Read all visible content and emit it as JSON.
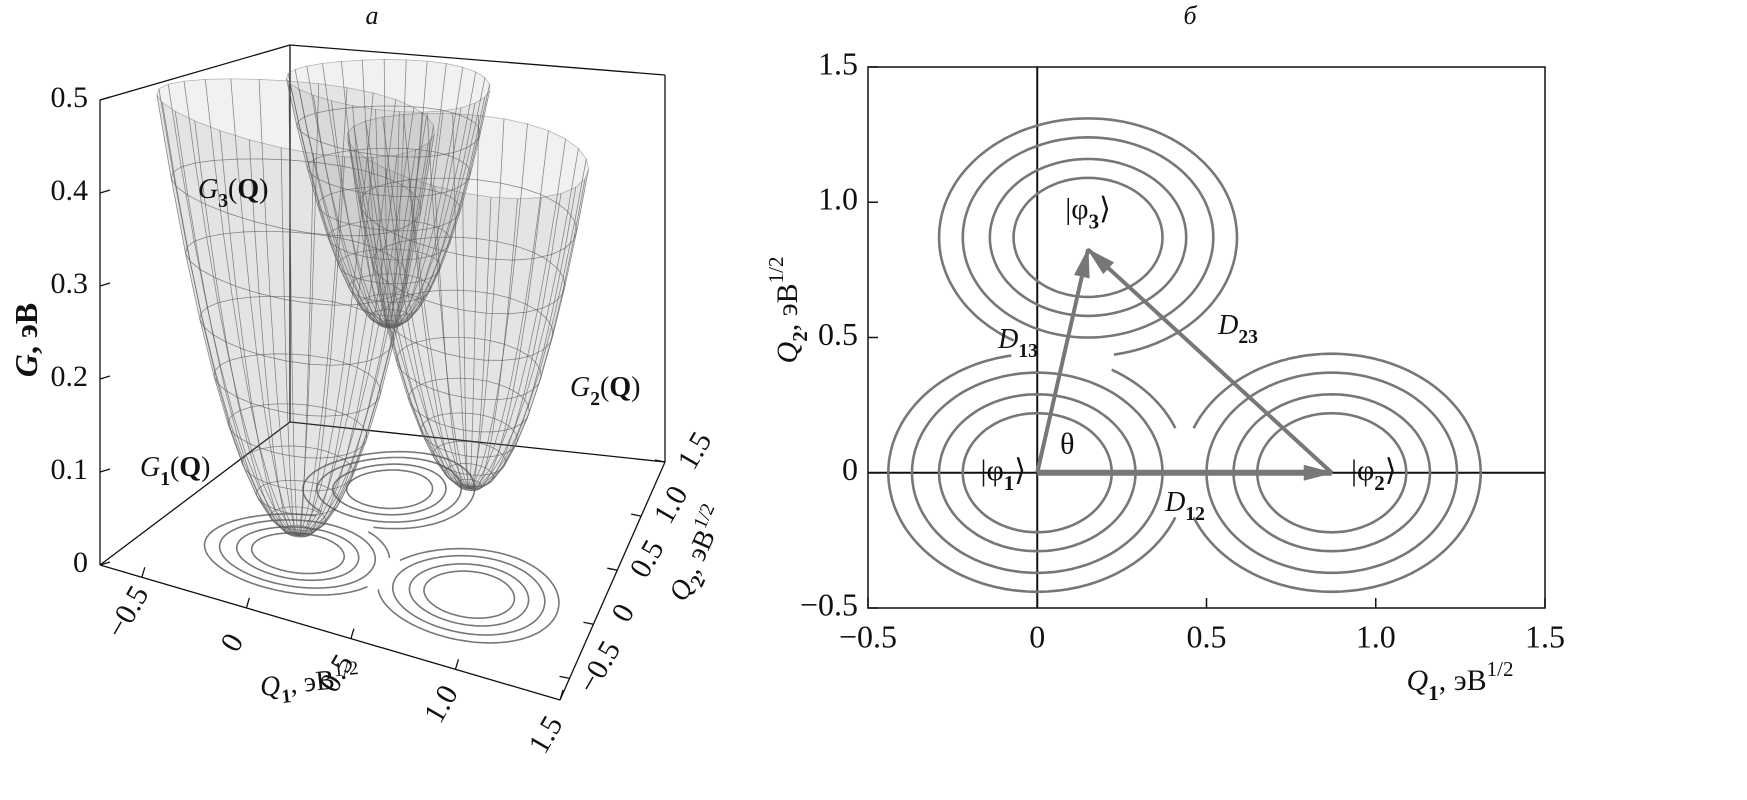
{
  "chart_data": [
    {
      "type": "surface3d",
      "title": "а",
      "zlabel": [
        {
          "text": "G",
          "style": "bi"
        },
        {
          "text": ", эВ",
          "style": "b"
        }
      ],
      "xlabel": [
        {
          "text": "Q",
          "style": "i"
        },
        {
          "text": "1",
          "style": "sub"
        },
        {
          "text": ", эВ",
          "style": "n"
        },
        {
          "text": "1/2",
          "style": "sup"
        }
      ],
      "ylabel": [
        {
          "text": "Q",
          "style": "i"
        },
        {
          "text": "2",
          "style": "sub"
        },
        {
          "text": ", эВ",
          "style": "n"
        },
        {
          "text": "1/2",
          "style": "sup"
        }
      ],
      "xlim": [
        -0.7,
        1.5
      ],
      "ylim": [
        -0.7,
        1.5
      ],
      "zlim": [
        0,
        0.5
      ],
      "xticks": [
        {
          "value": -0.5,
          "label": "−0.5"
        },
        0,
        0.5,
        {
          "value": 1,
          "label": "1.0"
        },
        1.5
      ],
      "yticks": [
        {
          "value": -0.5,
          "label": "−0.5"
        },
        0,
        0.5,
        {
          "value": 1,
          "label": "1.0"
        },
        1.5
      ],
      "zticks": [
        0,
        0.1,
        0.2,
        0.3,
        0.4,
        0.5
      ],
      "curvature": 1.1,
      "color": "#808080",
      "surfaces": [
        {
          "label": [
            {
              "text": "G",
              "style": "i"
            },
            {
              "text": "1",
              "style": "sub"
            },
            {
              "text": "(",
              "style": "n"
            },
            {
              "text": "Q",
              "style": "b"
            },
            {
              "text": ")",
              "style": "n"
            }
          ],
          "min": 0.02
        },
        {
          "label": [
            {
              "text": "G",
              "style": "i"
            },
            {
              "text": "2",
              "style": "sub"
            },
            {
              "text": "(",
              "style": "n"
            },
            {
              "text": "Q",
              "style": "b"
            },
            {
              "text": ")",
              "style": "n"
            }
          ],
          "min": 0.12
        },
        {
          "label": [
            {
              "text": "G",
              "style": "i"
            },
            {
              "text": "3",
              "style": "sub"
            },
            {
              "text": "(",
              "style": "n"
            },
            {
              "text": "Q",
              "style": "b"
            },
            {
              "text": ")",
              "style": "n"
            }
          ],
          "min": 0.2
        }
      ]
    },
    {
      "type": "contour",
      "title": "б",
      "xlabel": [
        {
          "text": "Q",
          "style": "i"
        },
        {
          "text": "1",
          "style": "sub"
        },
        {
          "text": ", эВ",
          "style": "n"
        },
        {
          "text": "1/2",
          "style": "sup"
        }
      ],
      "ylabel": [
        {
          "text": "Q",
          "style": "i"
        },
        {
          "text": "2",
          "style": "sub"
        },
        {
          "text": ", эВ",
          "style": "n"
        },
        {
          "text": "1/2",
          "style": "sup"
        }
      ],
      "xlim": [
        -0.5,
        1.5
      ],
      "ylim": [
        -0.5,
        1.5
      ],
      "xticks": [
        {
          "value": -0.5,
          "label": "−0.5"
        },
        0,
        0.5,
        {
          "value": 1,
          "label": "1.0"
        },
        1.5
      ],
      "yticks": [
        {
          "value": -0.5,
          "label": "−0.5"
        },
        0,
        0.5,
        {
          "value": 1,
          "label": "1.0"
        },
        1.5
      ],
      "contour_radii": [
        0.22,
        0.29,
        0.37,
        0.44
      ],
      "contour_color": "#777777",
      "states": [
        {
          "label": [
            {
              "text": "|φ",
              "style": "n"
            },
            {
              "text": "1",
              "style": "sub"
            },
            {
              "text": "⟩",
              "style": "n"
            }
          ],
          "q1": 0,
          "q2": 0
        },
        {
          "label": [
            {
              "text": "|φ",
              "style": "n"
            },
            {
              "text": "2",
              "style": "sub"
            },
            {
              "text": "⟩",
              "style": "n"
            }
          ],
          "q1": 0.87,
          "q2": 0
        },
        {
          "label": [
            {
              "text": "|φ",
              "style": "n"
            },
            {
              "text": "3",
              "style": "sub"
            },
            {
              "text": "⟩",
              "style": "n"
            }
          ],
          "q1": 0.15,
          "q2": 0.87
        }
      ],
      "arrows": [
        {
          "label": [
            {
              "text": "D",
              "style": "i"
            },
            {
              "text": "12",
              "style": "sub"
            }
          ],
          "from": 0,
          "to": 1
        },
        {
          "label": [
            {
              "text": "D",
              "style": "i"
            },
            {
              "text": "13",
              "style": "sub"
            }
          ],
          "from": 0,
          "to": 2
        },
        {
          "label": [
            {
              "text": "D",
              "style": "i"
            },
            {
              "text": "23",
              "style": "sub"
            }
          ],
          "from": 1,
          "to": 2
        }
      ],
      "arrow_color": "#777777",
      "angle_label": "θ"
    }
  ]
}
